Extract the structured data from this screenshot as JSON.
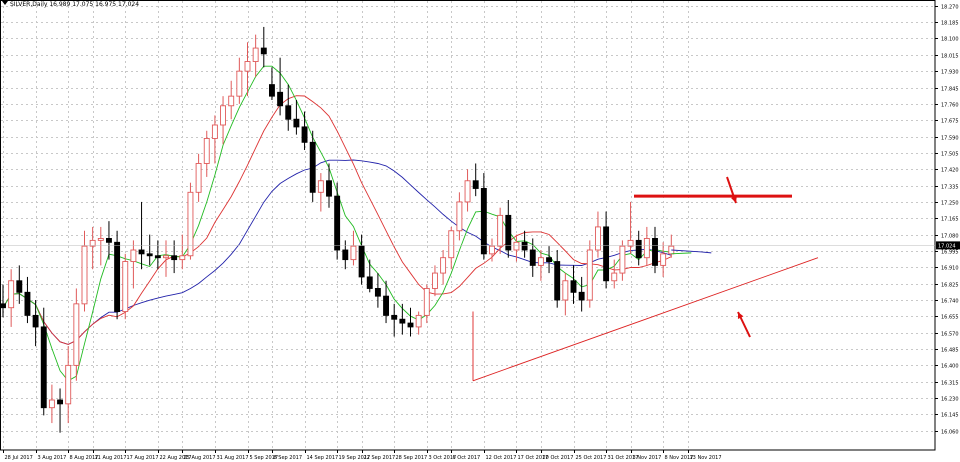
{
  "header": {
    "symbol_line": "SILVER,Daily 16.989 17.075 16.975 17.024"
  },
  "chart_data": {
    "type": "candlestick",
    "title": "SILVER,Daily",
    "ohlc_header": {
      "open": 16.989,
      "high": 17.075,
      "low": 16.975,
      "close": 17.024
    },
    "current_price": "17.024",
    "ylim": [
      15.96,
      18.3
    ],
    "y_ticks": [
      "18.270",
      "18.185",
      "18.100",
      "18.015",
      "17.930",
      "17.845",
      "17.760",
      "17.675",
      "17.590",
      "17.505",
      "17.420",
      "17.335",
      "17.250",
      "17.165",
      "17.080",
      "16.995",
      "16.910",
      "16.825",
      "16.740",
      "16.655",
      "16.570",
      "16.485",
      "16.400",
      "16.315",
      "16.230",
      "16.145",
      "16.060"
    ],
    "x_ticks": [
      "28 Jul 2017",
      "3 Aug 2017",
      "8 Aug 2017",
      "11 Aug 2017",
      "17 Aug 2017",
      "22 Aug 2017",
      "25 Aug 2017",
      "31 Aug 2017",
      "5 Sep 2017",
      "8 Sep 2017",
      "14 Sep 2017",
      "19 Sep 2017",
      "22 Sep 2017",
      "28 Sep 2017",
      "3 Oct 2017",
      "6 Oct 2017",
      "12 Oct 2017",
      "17 Oct 2017",
      "20 Oct 2017",
      "25 Oct 2017",
      "31 Oct 2017",
      "3 Nov 2017",
      "8 Nov 2017",
      "13 Nov 2017"
    ],
    "colors": {
      "bull_candle": "#e05a5a",
      "bear_candle": "#000000",
      "ma_fast": "#22bb22",
      "ma_mid": "#dd3333",
      "ma_slow": "#2222aa",
      "resistance": "#dd1111",
      "support": "#dd2222",
      "grid": "#c8c8c8",
      "price_label_bg": "#000000"
    },
    "candles": [
      {
        "o": 16.72,
        "h": 16.82,
        "l": 16.65,
        "c": 16.7
      },
      {
        "o": 16.7,
        "h": 16.9,
        "l": 16.6,
        "c": 16.84
      },
      {
        "o": 16.84,
        "h": 16.92,
        "l": 16.72,
        "c": 16.78
      },
      {
        "o": 16.78,
        "h": 16.86,
        "l": 16.62,
        "c": 16.66
      },
      {
        "o": 16.66,
        "h": 16.74,
        "l": 16.5,
        "c": 16.6
      },
      {
        "o": 16.6,
        "h": 16.7,
        "l": 16.14,
        "c": 16.18
      },
      {
        "o": 16.18,
        "h": 16.3,
        "l": 16.1,
        "c": 16.22
      },
      {
        "o": 16.22,
        "h": 16.28,
        "l": 16.05,
        "c": 16.2
      },
      {
        "o": 16.2,
        "h": 16.5,
        "l": 16.1,
        "c": 16.4
      },
      {
        "o": 16.4,
        "h": 16.8,
        "l": 16.32,
        "c": 16.72
      },
      {
        "o": 16.72,
        "h": 17.1,
        "l": 16.68,
        "c": 17.02
      },
      {
        "o": 17.02,
        "h": 17.12,
        "l": 16.9,
        "c": 17.05
      },
      {
        "o": 17.05,
        "h": 17.12,
        "l": 16.92,
        "c": 17.06
      },
      {
        "o": 17.06,
        "h": 17.15,
        "l": 16.95,
        "c": 17.04
      },
      {
        "o": 17.04,
        "h": 17.1,
        "l": 16.64,
        "c": 16.68
      },
      {
        "o": 16.68,
        "h": 16.98,
        "l": 16.64,
        "c": 16.94
      },
      {
        "o": 16.94,
        "h": 17.05,
        "l": 16.8,
        "c": 17.0
      },
      {
        "o": 17.0,
        "h": 17.25,
        "l": 16.9,
        "c": 16.98
      },
      {
        "o": 16.98,
        "h": 17.08,
        "l": 16.92,
        "c": 16.97
      },
      {
        "o": 16.97,
        "h": 17.05,
        "l": 16.9,
        "c": 16.96
      },
      {
        "o": 16.96,
        "h": 17.05,
        "l": 16.86,
        "c": 16.97
      },
      {
        "o": 16.97,
        "h": 17.05,
        "l": 16.88,
        "c": 16.95
      },
      {
        "o": 16.95,
        "h": 17.08,
        "l": 16.9,
        "c": 16.97
      },
      {
        "o": 16.97,
        "h": 17.35,
        "l": 16.95,
        "c": 17.3
      },
      {
        "o": 17.3,
        "h": 17.5,
        "l": 17.25,
        "c": 17.45
      },
      {
        "o": 17.45,
        "h": 17.62,
        "l": 17.38,
        "c": 17.58
      },
      {
        "o": 17.58,
        "h": 17.7,
        "l": 17.45,
        "c": 17.65
      },
      {
        "o": 17.65,
        "h": 17.8,
        "l": 17.55,
        "c": 17.75
      },
      {
        "o": 17.75,
        "h": 17.88,
        "l": 17.68,
        "c": 17.8
      },
      {
        "o": 17.8,
        "h": 18.0,
        "l": 17.76,
        "c": 17.93
      },
      {
        "o": 17.93,
        "h": 18.08,
        "l": 17.8,
        "c": 17.98
      },
      {
        "o": 17.98,
        "h": 18.12,
        "l": 17.9,
        "c": 18.05
      },
      {
        "o": 18.05,
        "h": 18.16,
        "l": 17.95,
        "c": 18.02
      },
      {
        "o": 17.86,
        "h": 17.95,
        "l": 17.78,
        "c": 17.8
      },
      {
        "o": 17.82,
        "h": 18.0,
        "l": 17.7,
        "c": 17.75
      },
      {
        "o": 17.75,
        "h": 17.86,
        "l": 17.62,
        "c": 17.68
      },
      {
        "o": 17.68,
        "h": 17.78,
        "l": 17.6,
        "c": 17.64
      },
      {
        "o": 17.64,
        "h": 17.72,
        "l": 17.52,
        "c": 17.56
      },
      {
        "o": 17.56,
        "h": 17.62,
        "l": 17.25,
        "c": 17.3
      },
      {
        "o": 17.3,
        "h": 17.4,
        "l": 17.2,
        "c": 17.36
      },
      {
        "o": 17.36,
        "h": 17.45,
        "l": 17.22,
        "c": 17.28
      },
      {
        "o": 17.28,
        "h": 17.35,
        "l": 16.95,
        "c": 17.0
      },
      {
        "o": 17.0,
        "h": 17.05,
        "l": 16.9,
        "c": 16.95
      },
      {
        "o": 16.95,
        "h": 17.1,
        "l": 16.92,
        "c": 17.02
      },
      {
        "o": 17.02,
        "h": 17.08,
        "l": 16.82,
        "c": 16.86
      },
      {
        "o": 16.86,
        "h": 16.95,
        "l": 16.78,
        "c": 16.8
      },
      {
        "o": 16.8,
        "h": 16.88,
        "l": 16.7,
        "c": 16.76
      },
      {
        "o": 16.76,
        "h": 16.84,
        "l": 16.62,
        "c": 16.66
      },
      {
        "o": 16.66,
        "h": 16.72,
        "l": 16.55,
        "c": 16.64
      },
      {
        "o": 16.64,
        "h": 16.72,
        "l": 16.56,
        "c": 16.62
      },
      {
        "o": 16.62,
        "h": 16.7,
        "l": 16.55,
        "c": 16.6
      },
      {
        "o": 16.6,
        "h": 16.68,
        "l": 16.56,
        "c": 16.66
      },
      {
        "o": 16.66,
        "h": 16.82,
        "l": 16.62,
        "c": 16.8
      },
      {
        "o": 16.8,
        "h": 16.92,
        "l": 16.76,
        "c": 16.88
      },
      {
        "o": 16.88,
        "h": 17.0,
        "l": 16.82,
        "c": 16.96
      },
      {
        "o": 16.96,
        "h": 17.12,
        "l": 16.9,
        "c": 17.1
      },
      {
        "o": 17.1,
        "h": 17.3,
        "l": 17.05,
        "c": 17.25
      },
      {
        "o": 17.25,
        "h": 17.42,
        "l": 17.2,
        "c": 17.36
      },
      {
        "o": 17.36,
        "h": 17.45,
        "l": 17.28,
        "c": 17.32
      },
      {
        "o": 17.32,
        "h": 17.4,
        "l": 16.95,
        "c": 16.98
      },
      {
        "o": 16.98,
        "h": 17.06,
        "l": 16.94,
        "c": 17.02
      },
      {
        "o": 17.02,
        "h": 17.22,
        "l": 16.98,
        "c": 17.18
      },
      {
        "o": 17.18,
        "h": 17.26,
        "l": 16.96,
        "c": 17.0
      },
      {
        "o": 17.0,
        "h": 17.08,
        "l": 16.94,
        "c": 17.04
      },
      {
        "o": 17.04,
        "h": 17.1,
        "l": 16.96,
        "c": 17.0
      },
      {
        "o": 17.0,
        "h": 17.06,
        "l": 16.86,
        "c": 16.92
      },
      {
        "o": 16.92,
        "h": 17.0,
        "l": 16.84,
        "c": 16.96
      },
      {
        "o": 16.96,
        "h": 17.02,
        "l": 16.88,
        "c": 16.94
      },
      {
        "o": 16.94,
        "h": 17.0,
        "l": 16.7,
        "c": 16.74
      },
      {
        "o": 16.74,
        "h": 16.88,
        "l": 16.66,
        "c": 16.84
      },
      {
        "o": 16.84,
        "h": 16.92,
        "l": 16.72,
        "c": 16.78
      },
      {
        "o": 16.78,
        "h": 16.86,
        "l": 16.68,
        "c": 16.74
      },
      {
        "o": 16.74,
        "h": 17.05,
        "l": 16.7,
        "c": 17.0
      },
      {
        "o": 17.0,
        "h": 17.2,
        "l": 16.96,
        "c": 17.12
      },
      {
        "o": 17.12,
        "h": 17.2,
        "l": 16.8,
        "c": 16.84
      },
      {
        "o": 16.84,
        "h": 16.95,
        "l": 16.8,
        "c": 16.88
      },
      {
        "o": 16.88,
        "h": 17.05,
        "l": 16.84,
        "c": 17.02
      },
      {
        "o": 17.02,
        "h": 17.25,
        "l": 16.98,
        "c": 17.05
      },
      {
        "o": 17.05,
        "h": 17.1,
        "l": 16.92,
        "c": 16.96
      },
      {
        "o": 16.96,
        "h": 17.12,
        "l": 16.92,
        "c": 17.06
      },
      {
        "o": 17.06,
        "h": 17.12,
        "l": 16.88,
        "c": 16.92
      },
      {
        "o": 16.92,
        "h": 17.04,
        "l": 16.86,
        "c": 16.98
      },
      {
        "o": 16.98,
        "h": 17.08,
        "l": 16.96,
        "c": 17.02
      }
    ],
    "annotations": [
      {
        "type": "hline",
        "label": "resistance",
        "price": 17.28
      },
      {
        "type": "trendline",
        "label": "support",
        "from_price": 16.32,
        "to_price": 16.96
      },
      {
        "type": "line",
        "label": "support-start",
        "from_price": 16.68,
        "to_price": 16.32
      },
      {
        "type": "arrow",
        "label": "arrow-down"
      },
      {
        "type": "arrow",
        "label": "arrow-up"
      }
    ]
  }
}
